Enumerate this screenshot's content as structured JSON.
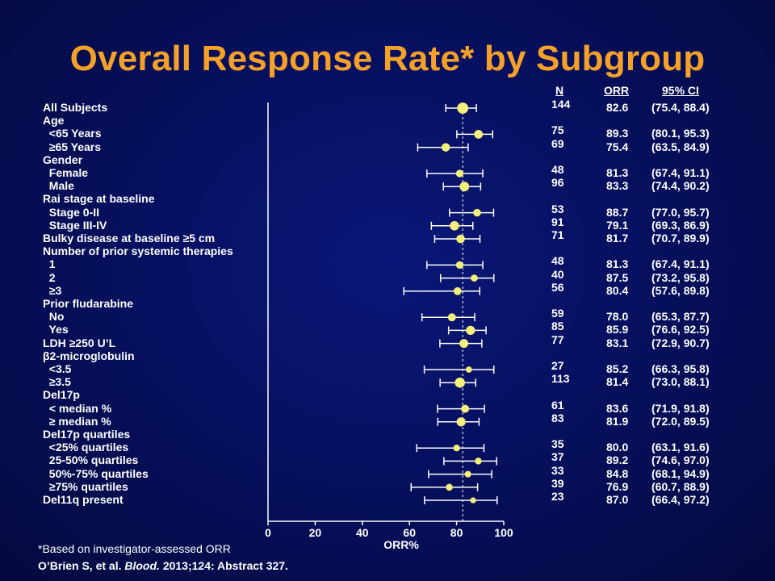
{
  "title": "Overall Response Rate* by Subgroup",
  "headers": {
    "n": "N",
    "orr": "ORR",
    "ci": "95% CI"
  },
  "footnote": "*Based on investigator-assessed ORR",
  "citation": {
    "authors": "O’Brien S, et al.",
    "journal": "Blood.",
    "rest": "2013;124: Abstract  327."
  },
  "colors": {
    "background": "#061060",
    "title": "#f5a028",
    "marker": "#f4f07a",
    "text": "#ffffff"
  },
  "chart_data": {
    "type": "forest",
    "xlabel": "ORR%",
    "xlim": [
      0,
      100
    ],
    "xticks": [
      "0",
      "20",
      "40",
      "60",
      "80",
      "100"
    ],
    "reference_line": 82.6,
    "reference_line_style": "dashed",
    "rows": [
      {
        "label": "All Subjects",
        "kind": "group",
        "n": "144",
        "orr": 82.6,
        "ci_low": 75.4,
        "ci_high": 88.4,
        "orr_text": "82.6",
        "ci_text": "(75.4, 88.4)"
      },
      {
        "label": "Age",
        "kind": "header"
      },
      {
        "label": "  <65 Years",
        "kind": "group",
        "n": "75",
        "orr": 89.3,
        "ci_low": 80.1,
        "ci_high": 95.3,
        "orr_text": "89.3",
        "ci_text": "(80.1, 95.3)"
      },
      {
        "label": "  ≥65 Years",
        "kind": "group",
        "n": "69",
        "orr": 75.4,
        "ci_low": 63.5,
        "ci_high": 84.9,
        "orr_text": "75.4",
        "ci_text": "(63.5, 84.9)"
      },
      {
        "label": "Gender",
        "kind": "header"
      },
      {
        "label": "  Female",
        "kind": "group",
        "n": "48",
        "orr": 81.3,
        "ci_low": 67.4,
        "ci_high": 91.1,
        "orr_text": "81.3",
        "ci_text": "(67.4, 91.1)"
      },
      {
        "label": "  Male",
        "kind": "group",
        "n": "96",
        "orr": 83.3,
        "ci_low": 74.4,
        "ci_high": 90.2,
        "orr_text": "83.3",
        "ci_text": "(74.4, 90.2)"
      },
      {
        "label": "Rai stage at baseline",
        "kind": "header"
      },
      {
        "label": "  Stage 0-II",
        "kind": "group",
        "n": "53",
        "orr": 88.7,
        "ci_low": 77.0,
        "ci_high": 95.7,
        "orr_text": "88.7",
        "ci_text": "(77.0, 95.7)"
      },
      {
        "label": "  Stage III-IV",
        "kind": "group",
        "n": "91",
        "orr": 79.1,
        "ci_low": 69.3,
        "ci_high": 86.9,
        "orr_text": "79.1",
        "ci_text": "(69.3, 86.9)"
      },
      {
        "label": "Bulky disease at baseline ≥5 cm",
        "kind": "group",
        "n": "71",
        "orr": 81.7,
        "ci_low": 70.7,
        "ci_high": 89.9,
        "orr_text": "81.7",
        "ci_text": "(70.7, 89.9)"
      },
      {
        "label": "Number of prior systemic therapies",
        "kind": "header"
      },
      {
        "label": "  1",
        "kind": "group",
        "n": "48",
        "orr": 81.3,
        "ci_low": 67.4,
        "ci_high": 91.1,
        "orr_text": "81.3",
        "ci_text": "(67.4, 91.1)"
      },
      {
        "label": "  2",
        "kind": "group",
        "n": "40",
        "orr": 87.5,
        "ci_low": 73.2,
        "ci_high": 95.8,
        "orr_text": "87.5",
        "ci_text": "(73.2, 95.8)"
      },
      {
        "label": "  ≥3",
        "kind": "group",
        "n": "56",
        "orr": 80.4,
        "ci_low": 57.6,
        "ci_high": 89.8,
        "orr_text": "80.4",
        "ci_text": "(57.6, 89.8)"
      },
      {
        "label": "Prior fludarabine",
        "kind": "header"
      },
      {
        "label": "  No",
        "kind": "group",
        "n": "59",
        "orr": 78.0,
        "ci_low": 65.3,
        "ci_high": 87.7,
        "orr_text": "78.0",
        "ci_text": "(65.3, 87.7)"
      },
      {
        "label": "  Yes",
        "kind": "group",
        "n": "85",
        "orr": 85.9,
        "ci_low": 76.6,
        "ci_high": 92.5,
        "orr_text": "85.9",
        "ci_text": "(76.6, 92.5)"
      },
      {
        "label": "LDH ≥250 U’L",
        "kind": "group",
        "n": "77",
        "orr": 83.1,
        "ci_low": 72.9,
        "ci_high": 90.7,
        "orr_text": "83.1",
        "ci_text": "(72.9, 90.7)"
      },
      {
        "label": "β2-microglobulin",
        "kind": "header"
      },
      {
        "label": "  <3.5",
        "kind": "group",
        "n": "27",
        "orr": 85.2,
        "ci_low": 66.3,
        "ci_high": 95.8,
        "orr_text": "85.2",
        "ci_text": "(66.3, 95.8)"
      },
      {
        "label": "  ≥3.5",
        "kind": "group",
        "n": "113",
        "orr": 81.4,
        "ci_low": 73.0,
        "ci_high": 88.1,
        "orr_text": "81.4",
        "ci_text": "(73.0, 88.1)"
      },
      {
        "label": "Del17p",
        "kind": "header"
      },
      {
        "label": "  < median %",
        "kind": "group",
        "n": "61",
        "orr": 83.6,
        "ci_low": 71.9,
        "ci_high": 91.8,
        "orr_text": "83.6",
        "ci_text": "(71.9, 91.8)"
      },
      {
        "label": "  ≥ median %",
        "kind": "group",
        "n": "83",
        "orr": 81.9,
        "ci_low": 72.0,
        "ci_high": 89.5,
        "orr_text": "81.9",
        "ci_text": "(72.0, 89.5)"
      },
      {
        "label": "Del17p quartiles",
        "kind": "header"
      },
      {
        "label": "  <25% quartiles",
        "kind": "group",
        "n": "35",
        "orr": 80.0,
        "ci_low": 63.1,
        "ci_high": 91.6,
        "orr_text": "80.0",
        "ci_text": "(63.1, 91.6)"
      },
      {
        "label": "  25-50% quartiles",
        "kind": "group",
        "n": "37",
        "orr": 89.2,
        "ci_low": 74.6,
        "ci_high": 97.0,
        "orr_text": "89.2",
        "ci_text": "(74.6, 97.0)"
      },
      {
        "label": "  50%-75% quartiles",
        "kind": "group",
        "n": "33",
        "orr": 84.8,
        "ci_low": 68.1,
        "ci_high": 94.9,
        "orr_text": "84.8",
        "ci_text": "(68.1, 94.9)"
      },
      {
        "label": "  ≥75% quartiles",
        "kind": "group",
        "n": "39",
        "orr": 76.9,
        "ci_low": 60.7,
        "ci_high": 88.9,
        "orr_text": "76.9",
        "ci_text": "(60.7, 88.9)"
      },
      {
        "label": "Del11q present",
        "kind": "group",
        "n": "23",
        "orr": 87.0,
        "ci_low": 66.4,
        "ci_high": 97.2,
        "orr_text": "87.0",
        "ci_text": "(66.4, 97.2)"
      }
    ]
  }
}
